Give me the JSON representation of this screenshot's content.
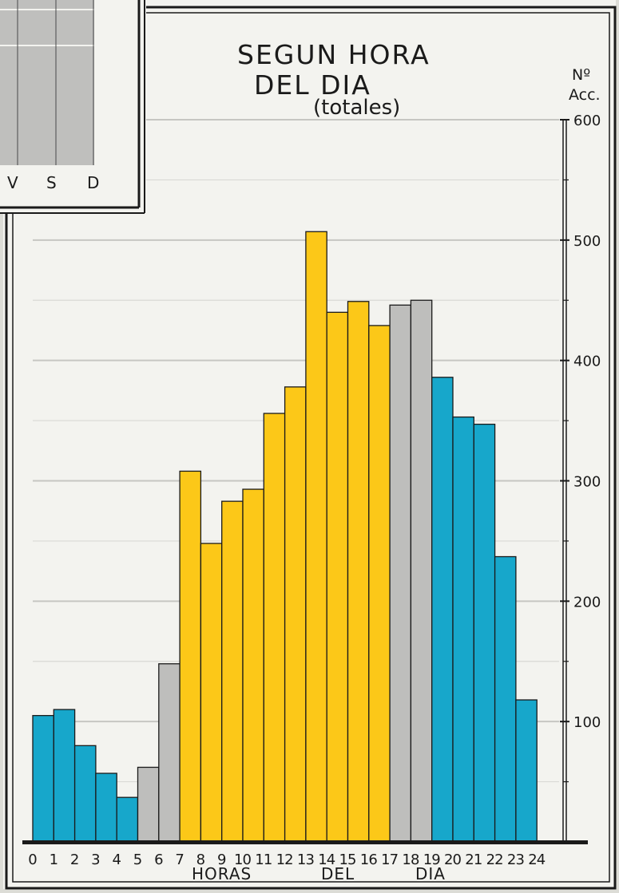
{
  "chart_data": {
    "type": "bar",
    "title": "SEGUN HORA DEL DIA",
    "subtitle": "(totales)",
    "y_label": "Nº Acc.",
    "x_label_words": [
      "HORAS",
      "DEL",
      "DIA"
    ],
    "ylim": [
      0,
      600
    ],
    "y_ticks": [
      100,
      200,
      300,
      400,
      500,
      600
    ],
    "grid": true,
    "x_tick_labels": [
      "0",
      "1",
      "2",
      "3",
      "4",
      "5",
      "6",
      "7",
      "8",
      "9",
      "10",
      "11",
      "12",
      "13",
      "14",
      "15",
      "16",
      "17",
      "18",
      "19",
      "20",
      "21",
      "22",
      "23",
      "24"
    ],
    "categories": [
      "0",
      "1",
      "2",
      "3",
      "4",
      "5",
      "6",
      "7",
      "8",
      "9",
      "10",
      "11",
      "12",
      "13",
      "14",
      "15",
      "16",
      "17",
      "18",
      "19",
      "20",
      "21",
      "22",
      "23"
    ],
    "values": [
      105,
      110,
      80,
      57,
      37,
      62,
      148,
      308,
      248,
      283,
      293,
      356,
      378,
      507,
      440,
      449,
      429,
      446,
      450,
      386,
      353,
      347,
      237,
      118
    ],
    "bar_colors": [
      "#17a7cb",
      "#17a7cb",
      "#17a7cb",
      "#17a7cb",
      "#17a7cb",
      "#bebebc",
      "#bebebc",
      "#fcc818",
      "#fcc818",
      "#fcc818",
      "#fcc818",
      "#fcc818",
      "#fcc818",
      "#fcc818",
      "#fcc818",
      "#fcc818",
      "#fcc818",
      "#bebebc",
      "#bebebc",
      "#17a7cb",
      "#17a7cb",
      "#17a7cb",
      "#17a7cb",
      "#17a7cb"
    ]
  },
  "inset_chart": {
    "day_labels": [
      "V",
      "S",
      "D"
    ]
  },
  "colors": {
    "night": "#17a7cb",
    "transition": "#bebebc",
    "day": "#fcc818",
    "paper": "#f3f3ef",
    "ink": "#1a1a1a"
  }
}
